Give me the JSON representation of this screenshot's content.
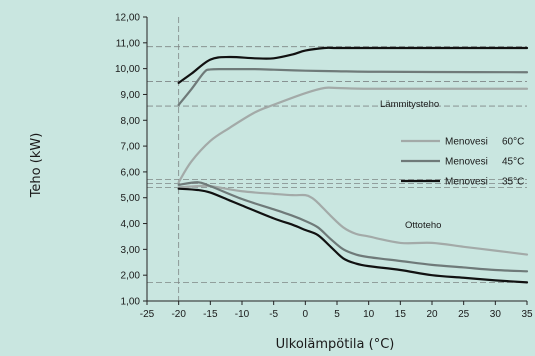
{
  "chart_data": {
    "type": "line",
    "xlabel": "Ulkolämpötila (°C)",
    "ylabel": "Teho (kW)",
    "xlim": [
      -25,
      35
    ],
    "ylim": [
      1.0,
      12.0
    ],
    "x_ticks": [
      "-25",
      "-20",
      "-15",
      "-10",
      "-5",
      "0",
      "5",
      "10",
      "15",
      "20",
      "25",
      "30",
      "35"
    ],
    "y_ticks": [
      "1,00",
      "2,00",
      "3,00",
      "4,00",
      "5,00",
      "6,00",
      "7,00",
      "8,00",
      "9,00",
      "10,00",
      "11,00",
      "12,00"
    ],
    "grid": false,
    "legend_position": "right",
    "annotations": {
      "heating": "Lämmitysteho",
      "cooling": "Ottoteho"
    },
    "series": [
      {
        "name": "Menovesi",
        "temp": "60°C",
        "color": "#a3aaa8",
        "group": "Lämmitysteho",
        "x": [
          -20,
          -18,
          -15,
          -12,
          -8,
          -5,
          0,
          3,
          5,
          10,
          20,
          35
        ],
        "y": [
          5.6,
          6.4,
          7.2,
          7.7,
          8.3,
          8.6,
          9.05,
          9.25,
          9.25,
          9.22,
          9.22,
          9.22
        ]
      },
      {
        "name": "Menovesi",
        "temp": "45°C",
        "color": "#6f7a79",
        "group": "Lämmitysteho",
        "x": [
          -20,
          -18,
          -16,
          -15,
          -12,
          -8,
          -5,
          0,
          5,
          10,
          20,
          35
        ],
        "y": [
          8.6,
          9.2,
          9.85,
          9.97,
          9.98,
          9.98,
          9.96,
          9.92,
          9.9,
          9.88,
          9.87,
          9.86
        ]
      },
      {
        "name": "Menovesi",
        "temp": "35°C",
        "color": "#111111",
        "group": "Lämmitysteho",
        "x": [
          -20,
          -18,
          -15,
          -12,
          -8,
          -5,
          -2,
          0,
          3,
          5,
          10,
          20,
          35
        ],
        "y": [
          9.45,
          9.8,
          10.35,
          10.45,
          10.4,
          10.4,
          10.55,
          10.7,
          10.8,
          10.8,
          10.8,
          10.8,
          10.8
        ]
      },
      {
        "name": "Menovesi",
        "temp": "60°C",
        "color": "#a3aaa8",
        "group": "Ottoteho",
        "x": [
          -20,
          -17,
          -15,
          -10,
          -5,
          -2,
          0,
          1,
          2,
          4,
          6,
          8,
          10,
          15,
          20,
          25,
          30,
          35
        ],
        "y": [
          5.4,
          5.45,
          5.45,
          5.25,
          5.15,
          5.1,
          5.1,
          5.0,
          4.8,
          4.3,
          3.85,
          3.6,
          3.5,
          3.25,
          3.25,
          3.1,
          2.95,
          2.8
        ]
      },
      {
        "name": "Menovesi",
        "temp": "45°C",
        "color": "#6f7a79",
        "group": "Ottoteho",
        "x": [
          -20,
          -17,
          -15,
          -10,
          -5,
          -2,
          0,
          2,
          4,
          6,
          8,
          10,
          15,
          20,
          25,
          30,
          35
        ],
        "y": [
          5.5,
          5.6,
          5.45,
          4.95,
          4.55,
          4.3,
          4.1,
          3.85,
          3.4,
          3.0,
          2.8,
          2.7,
          2.55,
          2.4,
          2.3,
          2.2,
          2.15
        ]
      },
      {
        "name": "Menovesi",
        "temp": "35°C",
        "color": "#111111",
        "group": "Ottoteho",
        "x": [
          -20,
          -17,
          -15,
          -12,
          -10,
          -5,
          -2,
          0,
          2,
          4,
          6,
          8,
          10,
          15,
          20,
          25,
          30,
          35
        ],
        "y": [
          5.35,
          5.3,
          5.2,
          4.9,
          4.7,
          4.2,
          3.95,
          3.75,
          3.55,
          3.1,
          2.65,
          2.45,
          2.35,
          2.2,
          2.0,
          1.9,
          1.8,
          1.72
        ]
      }
    ],
    "reference_lines": {
      "horizontal": [
        10.85,
        9.5,
        8.55,
        5.7,
        5.55,
        5.4,
        1.72
      ],
      "vertical": [
        -20
      ]
    }
  }
}
